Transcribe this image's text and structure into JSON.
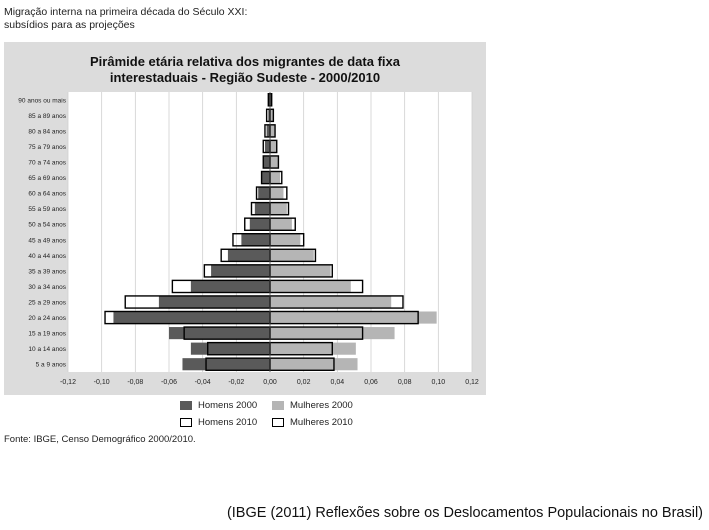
{
  "header": {
    "line1": "Migração interna na primeira década do Século XXI:",
    "line2": "subsídios para as projeções"
  },
  "chart_data": {
    "type": "bar",
    "orientation": "horizontal",
    "title_line1": "Pirâmide etária relativa dos migrantes de data fixa",
    "title_line2": "interestaduais - Região Sudeste - 2000/2010",
    "categories": [
      "90 anos ou mais",
      "85 a 89 anos",
      "80 a 84 anos",
      "75 a 79 anos",
      "70 a 74 anos",
      "65 a 69 anos",
      "60 a 64 anos",
      "55 a 59 anos",
      "50 a 54 anos",
      "45 a 49 anos",
      "40 a 44 anos",
      "35 a 39 anos",
      "30 a 34 anos",
      "25 a 29 anos",
      "20 a 24 anos",
      "15 a 19 anos",
      "10 a 14 anos",
      "5 a 9 anos"
    ],
    "series": [
      {
        "name": "Homens 2000",
        "side": "left",
        "values": [
          0.0005,
          0.001,
          0.002,
          0.003,
          0.004,
          0.005,
          0.007,
          0.009,
          0.012,
          0.017,
          0.025,
          0.035,
          0.047,
          0.066,
          0.093,
          0.06,
          0.047,
          0.052
        ]
      },
      {
        "name": "Mulheres 2000",
        "side": "right",
        "values": [
          0.001,
          0.002,
          0.003,
          0.004,
          0.005,
          0.006,
          0.008,
          0.01,
          0.013,
          0.018,
          0.026,
          0.036,
          0.048,
          0.072,
          0.099,
          0.074,
          0.051,
          0.052
        ]
      },
      {
        "name": "Homens 2010",
        "side": "left",
        "values": [
          0.001,
          0.002,
          0.003,
          0.004,
          0.004,
          0.005,
          0.008,
          0.011,
          0.015,
          0.022,
          0.029,
          0.039,
          0.058,
          0.086,
          0.098,
          0.051,
          0.037,
          0.038
        ]
      },
      {
        "name": "Mulheres 2010",
        "side": "right",
        "values": [
          0.001,
          0.002,
          0.003,
          0.004,
          0.005,
          0.007,
          0.01,
          0.011,
          0.015,
          0.02,
          0.027,
          0.037,
          0.055,
          0.079,
          0.088,
          0.055,
          0.037,
          0.038
        ]
      }
    ],
    "x_ticks": [
      "-0,12",
      "-0,10",
      "-0,08",
      "-0,06",
      "-0,04",
      "-0,02",
      "0,00",
      "0,02",
      "0,04",
      "0,06",
      "0,08",
      "0,10",
      "0,12"
    ],
    "xlim": [
      -0.12,
      0.12
    ],
    "grid": true,
    "colors": {
      "homens_2000": "#5a5a5a",
      "mulheres_2000": "#b5b5b5",
      "outline_2010": "#000000",
      "fill_2010": "#ffffff",
      "panel_bg": "#dcdcdc",
      "plot_bg": "#ffffff"
    }
  },
  "legend": {
    "homens_2000": "Homens 2000",
    "mulheres_2000": "Mulheres 2000",
    "homens_2010": "Homens 2010",
    "mulheres_2010": "Mulheres 2010"
  },
  "source": "Fonte: IBGE, Censo Demográfico 2000/2010.",
  "citation": "(IBGE (2011) Reflexões sobre os Deslocamentos Populacionais no Brasil)"
}
